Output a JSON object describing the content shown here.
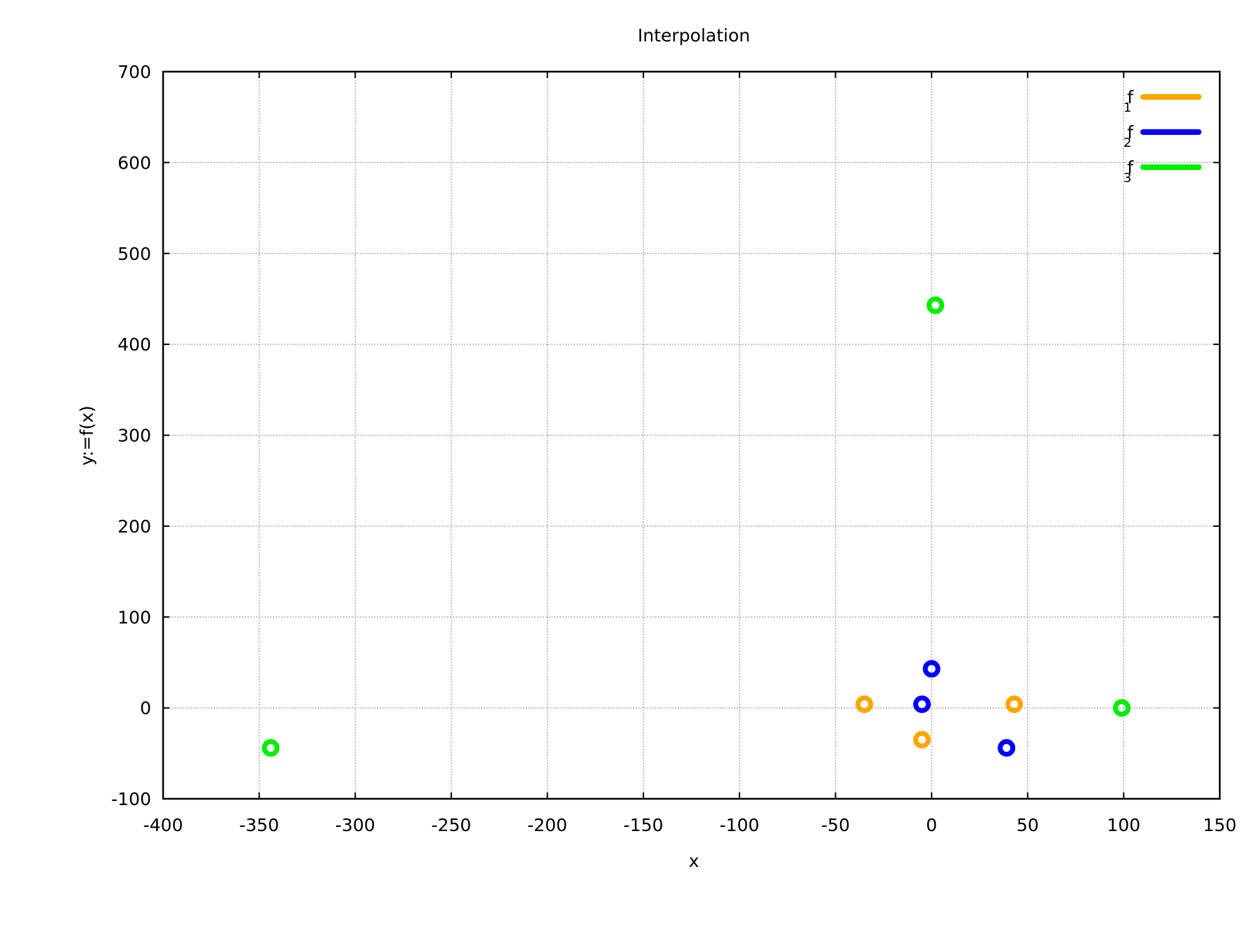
{
  "chart_data": {
    "type": "scatter",
    "title": "Interpolation",
    "xlabel": "x",
    "ylabel": "y:=f(x)",
    "xlim": [
      -400,
      150
    ],
    "ylim": [
      -100,
      700
    ],
    "xticks": [
      -400,
      -350,
      -300,
      -250,
      -200,
      -150,
      -100,
      -50,
      0,
      50,
      100,
      150
    ],
    "yticks": [
      -100,
      0,
      100,
      200,
      300,
      400,
      500,
      600,
      700
    ],
    "grid": true,
    "legend_position": "top-right",
    "series": [
      {
        "name": "f",
        "subscript": "1",
        "color": "#ffa500",
        "points": [
          {
            "x": -35,
            "y": 4
          },
          {
            "x": -5,
            "y": -35
          },
          {
            "x": 43,
            "y": 4
          }
        ]
      },
      {
        "name": "f",
        "subscript": "2",
        "color": "#0000ff",
        "points": [
          {
            "x": 0,
            "y": 43
          },
          {
            "x": -5,
            "y": 4
          },
          {
            "x": 39,
            "y": -44
          }
        ]
      },
      {
        "name": "f",
        "subscript": "3",
        "color": "#00ee00",
        "points": [
          {
            "x": -344,
            "y": -44
          },
          {
            "x": 2,
            "y": 443
          },
          {
            "x": 99,
            "y": 0
          }
        ]
      }
    ]
  }
}
